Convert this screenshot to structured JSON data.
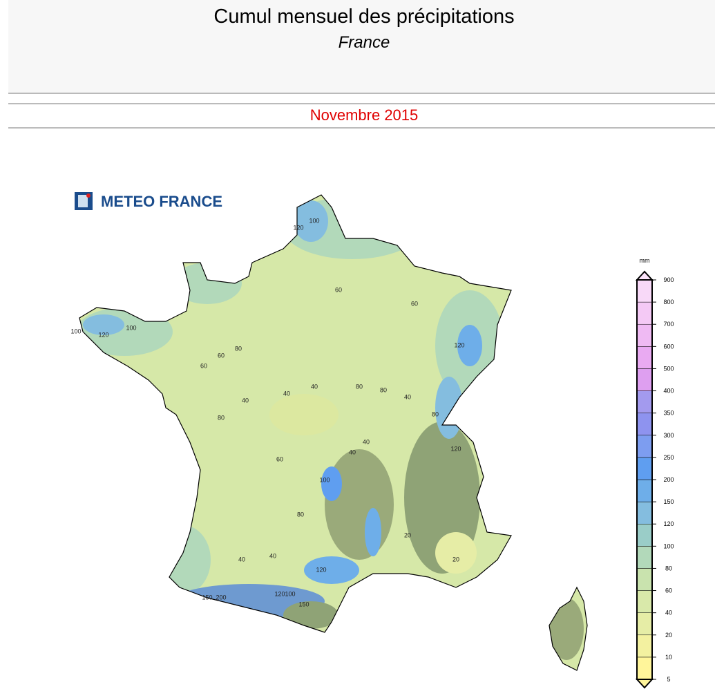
{
  "header": {
    "title": "Cumul mensuel des précipitations",
    "subtitle": "France",
    "period": "Novembre 2015"
  },
  "logo": {
    "text": "METEO FRANCE"
  },
  "legend": {
    "unit": "mm",
    "ticks": [
      5,
      10,
      20,
      40,
      60,
      80,
      100,
      120,
      150,
      200,
      250,
      300,
      350,
      400,
      500,
      600,
      700,
      800,
      900
    ],
    "colors": [
      "#fff59a",
      "#f3f1a0",
      "#e6eda6",
      "#d9e9aa",
      "#c9e3ae",
      "#b2d9ba",
      "#9acdc8",
      "#84bddf",
      "#6eaee9",
      "#5f9ef0",
      "#7d9df0",
      "#8e93ef",
      "#a39aee",
      "#de9ff0",
      "#e9aaf2",
      "#efbaf3",
      "#f4c9f5",
      "#f8d9f8"
    ],
    "top_color": "#fbe3fa",
    "bottom_color": "#fff59a"
  },
  "map": {
    "contour_labels": [
      120,
      100,
      60,
      80,
      60,
      100,
      120,
      100,
      60,
      40,
      40,
      80,
      80,
      60,
      40,
      80,
      120,
      40,
      40,
      80,
      120,
      100,
      80,
      40,
      20,
      20,
      40,
      150,
      200,
      150,
      120,
      100,
      120,
      60,
      40
    ]
  }
}
